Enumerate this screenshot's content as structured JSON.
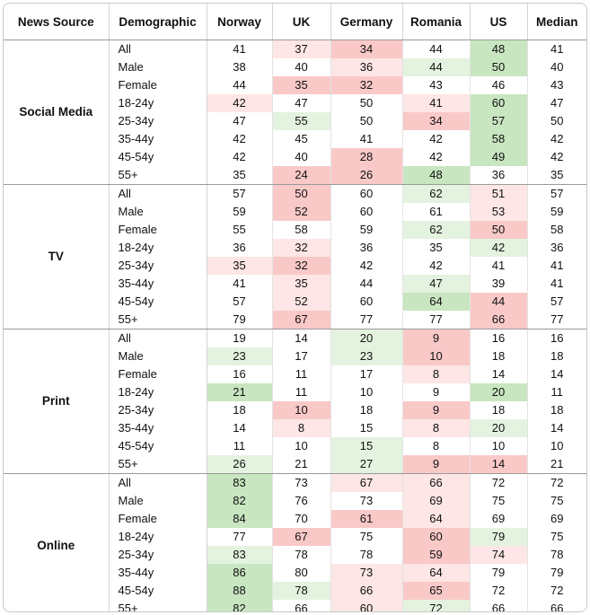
{
  "chart_data": {
    "type": "table",
    "headers": [
      "News Source",
      "Demographic",
      "Norway",
      "UK",
      "Germany",
      "Romania",
      "US",
      "Median"
    ],
    "demographics": [
      "All",
      "Male",
      "Female",
      "18-24y",
      "25-34y",
      "35-44y",
      "45-54y",
      "55+"
    ],
    "groups": [
      {
        "source": "Social Media",
        "values": [
          [
            41,
            37,
            34,
            44,
            48,
            41
          ],
          [
            38,
            40,
            36,
            44,
            50,
            40
          ],
          [
            44,
            35,
            32,
            43,
            46,
            43
          ],
          [
            42,
            47,
            50,
            41,
            60,
            47
          ],
          [
            47,
            55,
            50,
            34,
            57,
            50
          ],
          [
            42,
            45,
            41,
            42,
            58,
            42
          ],
          [
            42,
            40,
            28,
            42,
            49,
            42
          ],
          [
            35,
            24,
            26,
            48,
            36,
            35
          ]
        ],
        "shades": [
          [
            0,
            -1,
            -2,
            0,
            2,
            0
          ],
          [
            0,
            0,
            -1,
            1,
            2,
            0
          ],
          [
            0,
            -2,
            -2,
            0,
            0,
            0
          ],
          [
            -1,
            0,
            0,
            -1,
            2,
            0
          ],
          [
            0,
            1,
            0,
            -2,
            2,
            0
          ],
          [
            0,
            0,
            0,
            0,
            2,
            0
          ],
          [
            0,
            0,
            -2,
            0,
            2,
            0
          ],
          [
            0,
            -2,
            -2,
            2,
            0,
            0
          ]
        ]
      },
      {
        "source": "TV",
        "values": [
          [
            57,
            50,
            60,
            62,
            51,
            57
          ],
          [
            59,
            52,
            60,
            61,
            53,
            59
          ],
          [
            55,
            58,
            59,
            62,
            50,
            58
          ],
          [
            36,
            32,
            36,
            35,
            42,
            36
          ],
          [
            35,
            32,
            42,
            42,
            41,
            41
          ],
          [
            41,
            35,
            44,
            47,
            39,
            41
          ],
          [
            57,
            52,
            60,
            64,
            44,
            57
          ],
          [
            79,
            67,
            77,
            77,
            66,
            77
          ]
        ],
        "shades": [
          [
            0,
            -2,
            0,
            1,
            -1,
            0
          ],
          [
            0,
            -2,
            0,
            0,
            -1,
            0
          ],
          [
            0,
            0,
            0,
            1,
            -2,
            0
          ],
          [
            0,
            -1,
            0,
            0,
            1,
            0
          ],
          [
            -1,
            -2,
            0,
            0,
            0,
            0
          ],
          [
            0,
            -1,
            0,
            1,
            0,
            0
          ],
          [
            0,
            -1,
            0,
            2,
            -2,
            0
          ],
          [
            0,
            -2,
            0,
            0,
            -2,
            0
          ]
        ]
      },
      {
        "source": "Print",
        "values": [
          [
            19,
            14,
            20,
            9,
            16,
            16
          ],
          [
            23,
            17,
            23,
            10,
            18,
            18
          ],
          [
            16,
            11,
            17,
            8,
            14,
            14
          ],
          [
            21,
            11,
            10,
            9,
            20,
            11
          ],
          [
            18,
            10,
            18,
            9,
            18,
            18
          ],
          [
            14,
            8,
            15,
            8,
            20,
            14
          ],
          [
            11,
            10,
            15,
            8,
            10,
            10
          ],
          [
            26,
            21,
            27,
            9,
            14,
            21
          ]
        ],
        "shades": [
          [
            0,
            0,
            1,
            -2,
            0,
            0
          ],
          [
            1,
            0,
            1,
            -2,
            0,
            0
          ],
          [
            0,
            0,
            0,
            -1,
            0,
            0
          ],
          [
            2,
            0,
            0,
            0,
            2,
            0
          ],
          [
            0,
            -2,
            0,
            -2,
            0,
            0
          ],
          [
            0,
            -1,
            0,
            -1,
            1,
            0
          ],
          [
            0,
            0,
            1,
            0,
            0,
            0
          ],
          [
            1,
            0,
            1,
            -2,
            -2,
            0
          ]
        ]
      },
      {
        "source": "Online",
        "values": [
          [
            83,
            73,
            67,
            66,
            72,
            72
          ],
          [
            82,
            76,
            73,
            69,
            75,
            75
          ],
          [
            84,
            70,
            61,
            64,
            69,
            69
          ],
          [
            77,
            67,
            75,
            60,
            79,
            75
          ],
          [
            83,
            78,
            78,
            59,
            74,
            78
          ],
          [
            86,
            80,
            73,
            64,
            79,
            79
          ],
          [
            88,
            78,
            66,
            65,
            72,
            72
          ],
          [
            82,
            66,
            60,
            72,
            66,
            66
          ]
        ],
        "shades": [
          [
            2,
            0,
            -1,
            -1,
            0,
            0
          ],
          [
            2,
            0,
            0,
            -1,
            0,
            0
          ],
          [
            2,
            0,
            -2,
            -1,
            0,
            0
          ],
          [
            0,
            -2,
            0,
            -2,
            1,
            0
          ],
          [
            1,
            0,
            0,
            -2,
            -1,
            0
          ],
          [
            2,
            0,
            -1,
            -1,
            0,
            0
          ],
          [
            2,
            1,
            -1,
            -2,
            0,
            0
          ],
          [
            2,
            0,
            -1,
            1,
            0,
            0
          ]
        ]
      }
    ],
    "colors": {
      "pos_strong": "#c8e6c0",
      "pos_light": "#e4f3df",
      "neg_strong": "#f9c9c8",
      "neg_light": "#fde6e5",
      "neutral": "#ffffff",
      "group_border": "#9a9a9a"
    }
  }
}
